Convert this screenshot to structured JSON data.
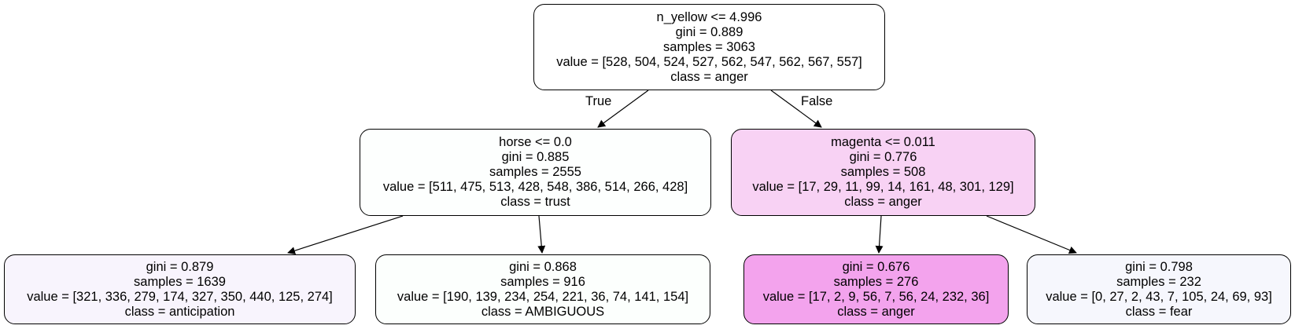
{
  "tree": {
    "edge_labels": {
      "true": "True",
      "false": "False"
    },
    "nodes": {
      "root": {
        "split": "n_yellow <= 4.996",
        "gini": "gini = 0.889",
        "samples": "samples = 3063",
        "value": "value = [528, 504, 524, 527, 562, 547, 562, 567, 557]",
        "class": "class = anger",
        "fill": "#ffffff"
      },
      "left": {
        "split": "horse <= 0.0",
        "gini": "gini = 0.885",
        "samples": "samples = 2555",
        "value": "value = [511, 475, 513, 428, 548, 386, 514, 266, 428]",
        "class": "class = trust",
        "fill": "#fdfffe"
      },
      "right": {
        "split": "magenta <= 0.011",
        "gini": "gini = 0.776",
        "samples": "samples = 508",
        "value": "value = [17, 29, 11, 99, 14, 161, 48, 301, 129]",
        "class": "class = anger",
        "fill": "#f8d2f4"
      },
      "ll": {
        "gini": "gini = 0.879",
        "samples": "samples = 1639",
        "value": "value = [321, 336, 279, 174, 327, 350, 440, 125, 274]",
        "class": "class = anticipation",
        "fill": "#f8f4fd"
      },
      "lr": {
        "gini": "gini = 0.868",
        "samples": "samples = 916",
        "value": "value = [190, 139, 234, 254, 221, 36, 74, 141, 154]",
        "class": "class = AMBIGUOUS",
        "fill": "#fcfffd"
      },
      "rl": {
        "gini": "gini = 0.676",
        "samples": "samples = 276",
        "value": "value = [17, 2, 9, 56, 7, 56, 24, 232, 36]",
        "class": "class = anger",
        "fill": "#f3a3ed"
      },
      "rr": {
        "gini": "gini = 0.798",
        "samples": "samples = 232",
        "value": "value = [0, 27, 2, 43, 7, 105, 24, 69, 93]",
        "class": "class = fear",
        "fill": "#f6f7fd"
      }
    }
  }
}
